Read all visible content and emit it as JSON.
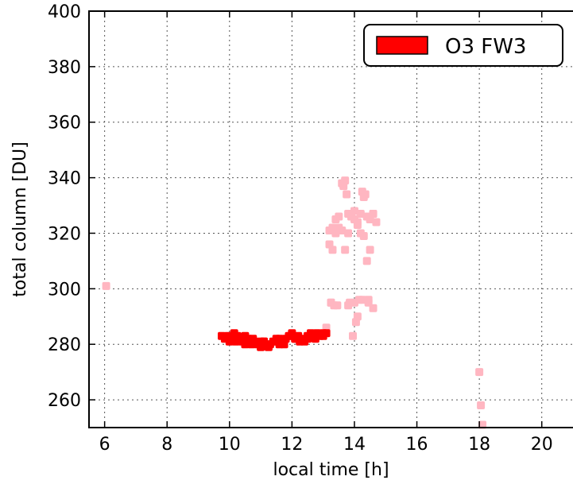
{
  "chart_data": {
    "type": "scatter",
    "title": "",
    "xlabel": "local time [h]",
    "ylabel": "total column [DU]",
    "xlim": [
      5.5,
      21
    ],
    "ylim": [
      250,
      400
    ],
    "xticks": [
      6,
      8,
      10,
      12,
      14,
      16,
      18,
      20
    ],
    "yticks": [
      260,
      280,
      300,
      320,
      340,
      360,
      380,
      400
    ],
    "xtick_labels": [
      "6",
      "8",
      "10",
      "12",
      "14",
      "16",
      "18",
      "20"
    ],
    "ytick_labels": [
      "260",
      "280",
      "300",
      "320",
      "340",
      "360",
      "380",
      "400"
    ],
    "grid": true,
    "legend_position": "top-right",
    "legend_label": "O3 FW3",
    "series": [
      {
        "name": "O3 FW3",
        "color": "#ff0000",
        "x": [
          9.75,
          9.85,
          9.95,
          10.05,
          10.15,
          10.2,
          10.3,
          10.4,
          10.5,
          10.6,
          10.7,
          10.8,
          10.9,
          11.0,
          11.1,
          11.2,
          11.3,
          11.4,
          11.5,
          11.6,
          11.7,
          11.8,
          11.9,
          12.0,
          12.1,
          12.2,
          12.3,
          12.4,
          12.5,
          12.6,
          12.7,
          12.8,
          12.9,
          13.0,
          13.1,
          10.0,
          10.25,
          10.5,
          10.75,
          11.0,
          11.25,
          11.5,
          11.75,
          12.0,
          12.25,
          12.5,
          12.75,
          13.0,
          10.1,
          10.6,
          11.1,
          11.6,
          12.1,
          12.6
        ],
        "y": [
          283,
          282,
          283,
          282,
          284,
          281,
          282,
          281,
          283,
          281,
          280,
          281,
          280,
          279,
          281,
          280,
          280,
          281,
          281,
          282,
          281,
          282,
          283,
          283,
          282,
          283,
          282,
          281,
          282,
          283,
          283,
          284,
          283,
          283,
          284,
          281,
          283,
          280,
          282,
          281,
          279,
          282,
          280,
          284,
          281,
          283,
          282,
          284,
          282,
          282,
          281,
          280,
          282,
          284
        ]
      },
      {
        "name": "",
        "color": "#ffb6c1",
        "x": [
          6.05,
          13.1,
          13.2,
          13.3,
          13.4,
          13.5,
          13.6,
          13.65,
          13.7,
          13.75,
          13.8,
          13.9,
          14.0,
          14.1,
          14.2,
          14.25,
          14.3,
          14.35,
          14.4,
          14.5,
          14.6,
          14.7,
          13.2,
          13.3,
          13.4,
          13.5,
          13.6,
          13.7,
          13.8,
          13.9,
          14.0,
          14.1,
          14.2,
          14.3,
          14.4,
          14.5,
          14.6,
          13.25,
          13.35,
          13.8,
          13.95,
          14.05,
          14.1,
          14.25,
          14.45,
          14.6,
          13.25,
          13.45,
          13.85,
          14.0,
          14.15,
          14.45,
          18.0,
          18.05,
          18.1
        ],
        "y": [
          301,
          286,
          321,
          322,
          325,
          326,
          338,
          337,
          339,
          334,
          327,
          326,
          325,
          324,
          327,
          335,
          333,
          334,
          326,
          325,
          327,
          324,
          316,
          314,
          320,
          322,
          321,
          314,
          320,
          326,
          328,
          323,
          320,
          319,
          310,
          314,
          327,
          295,
          294,
          294,
          283,
          288,
          290,
          296,
          296,
          293,
          295,
          294,
          295,
          295,
          296,
          295,
          270,
          258,
          251
        ]
      }
    ]
  }
}
